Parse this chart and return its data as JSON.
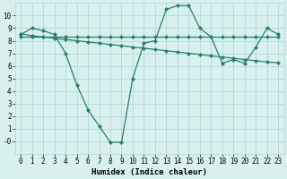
{
  "x": [
    0,
    1,
    2,
    3,
    4,
    5,
    6,
    7,
    8,
    9,
    10,
    11,
    12,
    13,
    14,
    15,
    16,
    17,
    18,
    19,
    20,
    21,
    22,
    23
  ],
  "y_main": [
    8.5,
    9.0,
    8.8,
    8.5,
    7.0,
    4.5,
    2.5,
    1.2,
    -0.1,
    -0.1,
    5.0,
    7.8,
    8.0,
    10.5,
    10.8,
    10.8,
    9.0,
    8.3,
    6.2,
    6.5,
    6.2,
    7.5,
    9.0,
    8.5
  ],
  "y_flat": [
    8.35,
    8.35,
    8.35,
    8.35,
    8.35,
    8.35,
    8.35,
    8.35,
    8.35,
    8.35,
    8.35,
    8.35,
    8.35,
    8.35,
    8.35,
    8.35,
    8.35,
    8.35,
    8.35,
    8.35,
    8.35,
    8.35,
    8.35,
    8.35
  ],
  "y_trend": [
    8.55,
    8.4,
    8.3,
    8.2,
    8.1,
    8.0,
    7.9,
    7.8,
    7.7,
    7.6,
    7.5,
    7.4,
    7.3,
    7.2,
    7.1,
    7.0,
    6.9,
    6.8,
    6.7,
    6.6,
    6.5,
    6.4,
    6.3,
    6.25
  ],
  "color": "#2a7d70",
  "bg_color": "#d8f0ee",
  "grid_color": "#aed4d0",
  "xlabel": "Humidex (Indice chaleur)",
  "ylim": [
    -1,
    11
  ],
  "xlim": [
    -0.5,
    23.5
  ],
  "yticks": [
    0,
    1,
    2,
    3,
    4,
    5,
    6,
    7,
    8,
    9,
    10
  ],
  "ytick_labels": [
    "-0",
    "1",
    "2",
    "3",
    "4",
    "5",
    "6",
    "7",
    "8",
    "9",
    "10"
  ],
  "xticks": [
    0,
    1,
    2,
    3,
    4,
    5,
    6,
    7,
    8,
    9,
    10,
    11,
    12,
    13,
    14,
    15,
    16,
    17,
    18,
    19,
    20,
    21,
    22,
    23
  ],
  "xtick_labels": [
    "0",
    "1",
    "2",
    "3",
    "4",
    "5",
    "6",
    "7",
    "8",
    "9",
    "10",
    "11",
    "12",
    "13",
    "14",
    "15",
    "16",
    "17",
    "18",
    "19",
    "20",
    "21",
    "22",
    "23"
  ],
  "font_size": 5.5,
  "xlabel_font_size": 6.5,
  "line_width": 0.9,
  "marker": "D",
  "marker_size": 2.0
}
